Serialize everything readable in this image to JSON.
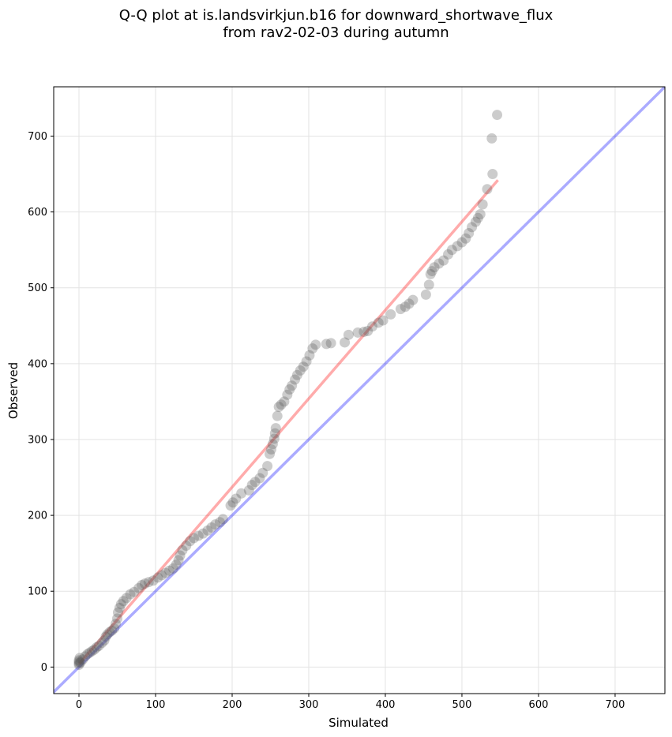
{
  "chart_data": {
    "type": "scatter",
    "title_line1": "Q-Q plot at is.landsvirkjun.b16 for downward_shortwave_flux",
    "title_line2": "from rav2-02-03 during autumn",
    "xlabel": "Simulated",
    "ylabel": "Observed",
    "xlim": [
      -33,
      765
    ],
    "ylim": [
      -35,
      765
    ],
    "xticks": [
      0,
      100,
      200,
      300,
      400,
      500,
      600,
      700
    ],
    "yticks": [
      0,
      100,
      200,
      300,
      400,
      500,
      600,
      700
    ],
    "grid": true,
    "reference_line": {
      "color": "#0000ff",
      "slope": 1,
      "intercept": 0
    },
    "fit_line": {
      "color": "#ff0000",
      "x": [
        0,
        547
      ],
      "y": [
        4,
        642
      ]
    },
    "points_color": "#555555",
    "points": [
      [
        0,
        3
      ],
      [
        0,
        5
      ],
      [
        0,
        7
      ],
      [
        0,
        9
      ],
      [
        1,
        12
      ],
      [
        2,
        6
      ],
      [
        5,
        10
      ],
      [
        8,
        14
      ],
      [
        11,
        17
      ],
      [
        14,
        19
      ],
      [
        17,
        21
      ],
      [
        20,
        23
      ],
      [
        23,
        26
      ],
      [
        26,
        28
      ],
      [
        30,
        32
      ],
      [
        33,
        35
      ],
      [
        35,
        40
      ],
      [
        37,
        43
      ],
      [
        40,
        46
      ],
      [
        43,
        48
      ],
      [
        46,
        51
      ],
      [
        48,
        57
      ],
      [
        50,
        64
      ],
      [
        51,
        72
      ],
      [
        53,
        78
      ],
      [
        55,
        83
      ],
      [
        58,
        87
      ],
      [
        62,
        91
      ],
      [
        67,
        96
      ],
      [
        72,
        99
      ],
      [
        78,
        104
      ],
      [
        82,
        108
      ],
      [
        86,
        110
      ],
      [
        91,
        112
      ],
      [
        97,
        114
      ],
      [
        103,
        118
      ],
      [
        108,
        121
      ],
      [
        113,
        124
      ],
      [
        118,
        127
      ],
      [
        123,
        130
      ],
      [
        127,
        135
      ],
      [
        130,
        141
      ],
      [
        132,
        147
      ],
      [
        135,
        154
      ],
      [
        140,
        160
      ],
      [
        145,
        166
      ],
      [
        150,
        170
      ],
      [
        156,
        173
      ],
      [
        162,
        176
      ],
      [
        168,
        180
      ],
      [
        173,
        184
      ],
      [
        178,
        188
      ],
      [
        184,
        191
      ],
      [
        188,
        195
      ],
      [
        198,
        213
      ],
      [
        201,
        217
      ],
      [
        205,
        222
      ],
      [
        212,
        229
      ],
      [
        222,
        233
      ],
      [
        226,
        240
      ],
      [
        230,
        244
      ],
      [
        236,
        249
      ],
      [
        240,
        256
      ],
      [
        246,
        265
      ],
      [
        249,
        281
      ],
      [
        251,
        287
      ],
      [
        253,
        294
      ],
      [
        255,
        301
      ],
      [
        256,
        308
      ],
      [
        257,
        315
      ],
      [
        259,
        331
      ],
      [
        261,
        343
      ],
      [
        264,
        346
      ],
      [
        268,
        350
      ],
      [
        272,
        359
      ],
      [
        275,
        366
      ],
      [
        278,
        371
      ],
      [
        282,
        379
      ],
      [
        285,
        385
      ],
      [
        289,
        391
      ],
      [
        293,
        396
      ],
      [
        297,
        403
      ],
      [
        301,
        411
      ],
      [
        305,
        420
      ],
      [
        309,
        425
      ],
      [
        323,
        426
      ],
      [
        329,
        427
      ],
      [
        347,
        428
      ],
      [
        352,
        438
      ],
      [
        364,
        441
      ],
      [
        372,
        442
      ],
      [
        377,
        443
      ],
      [
        383,
        449
      ],
      [
        391,
        454
      ],
      [
        397,
        457
      ],
      [
        407,
        465
      ],
      [
        420,
        472
      ],
      [
        426,
        475
      ],
      [
        431,
        479
      ],
      [
        436,
        484
      ],
      [
        453,
        491
      ],
      [
        457,
        504
      ],
      [
        459,
        518
      ],
      [
        461,
        522
      ],
      [
        464,
        527
      ],
      [
        470,
        532
      ],
      [
        476,
        536
      ],
      [
        482,
        544
      ],
      [
        487,
        550
      ],
      [
        494,
        555
      ],
      [
        500,
        560
      ],
      [
        505,
        565
      ],
      [
        509,
        572
      ],
      [
        513,
        580
      ],
      [
        518,
        587
      ],
      [
        521,
        592
      ],
      [
        524,
        597
      ],
      [
        527,
        610
      ],
      [
        533,
        630
      ],
      [
        540,
        650
      ],
      [
        539,
        697
      ],
      [
        546,
        728
      ]
    ]
  }
}
